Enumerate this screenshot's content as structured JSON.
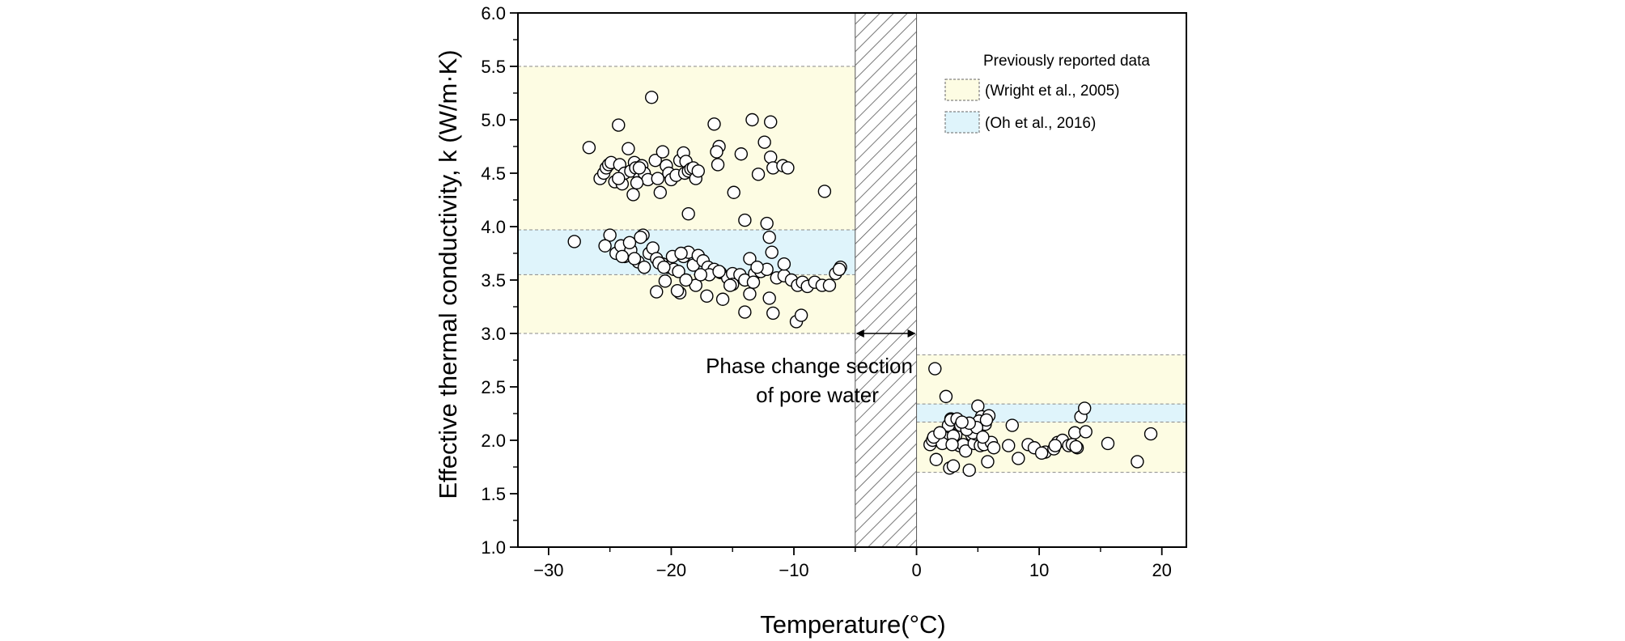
{
  "chart_data": {
    "type": "scatter",
    "title": "",
    "xlabel": "Temperature(°C)",
    "ylabel": "Effective thermal conductivity, k (W/m·K)",
    "xlim": [
      -32.5,
      22
    ],
    "ylim": [
      1.0,
      6.0
    ],
    "x_ticks": [
      -30,
      -20,
      -10,
      0,
      10,
      20
    ],
    "x_tick_labels": [
      "−30",
      "−20",
      "−10",
      "0",
      "10",
      "20"
    ],
    "y_ticks": [
      1.0,
      1.5,
      2.0,
      2.5,
      3.0,
      3.5,
      4.0,
      4.5,
      5.0,
      5.5,
      6.0
    ],
    "y_tick_labels": [
      "1.0",
      "1.5",
      "2.0",
      "2.5",
      "3.0",
      "3.5",
      "4.0",
      "4.5",
      "5.0",
      "5.5",
      "6.0"
    ],
    "grid": false,
    "legend": {
      "title": "Previously reported data",
      "placement": "top-right",
      "entries": [
        {
          "label": "(Wright et al., 2005)",
          "color": "#fdfce3"
        },
        {
          "label": "(Oh et al., 2016)",
          "color": "#dff4fb"
        }
      ]
    },
    "bands": [
      {
        "name": "wright-frozen",
        "x": [
          -32.5,
          -5
        ],
        "y": [
          3.0,
          5.5
        ],
        "color": "#fdfce3"
      },
      {
        "name": "oh-frozen",
        "x": [
          -32.5,
          -5
        ],
        "y": [
          3.55,
          3.97
        ],
        "color": "#dff4fb"
      },
      {
        "name": "wright-unfrozen",
        "x": [
          0,
          22
        ],
        "y": [
          1.7,
          2.8
        ],
        "color": "#fdfce3"
      },
      {
        "name": "oh-unfrozen",
        "x": [
          0,
          22
        ],
        "y": [
          2.17,
          2.34
        ],
        "color": "#dff4fb"
      }
    ],
    "phase_change_region": {
      "x": [
        -5,
        0
      ],
      "arrow_y": 3.0
    },
    "annotation": {
      "line1": "Phase change section",
      "line2": "of pore water"
    },
    "series": [
      {
        "x": [
          -27.9,
          -26.7,
          -25.8,
          -25.5,
          -25.3,
          -25.1,
          -24.9,
          -24.6,
          -24.3,
          -24.2,
          -24.0,
          -23.8,
          -23.5,
          -23.3,
          -23.1,
          -23.0,
          -22.9,
          -22.6,
          -22.4,
          -22.2,
          -21.9,
          -21.6,
          -21.3,
          -21.1,
          -20.9,
          -20.7,
          -20.4,
          -20.2,
          -20.0,
          -19.6,
          -19.3,
          -19.0,
          -18.9,
          -18.8,
          -18.6,
          -18.4,
          -18.2,
          -18.0,
          -17.8,
          -16.5,
          -16.2,
          -16.1,
          -16.3,
          -14.9,
          -14.3,
          -13.4,
          -12.9,
          -12.4,
          -11.9,
          -11.9,
          -11.7,
          -10.9,
          -10.5,
          -7.5,
          -25.0,
          -24.5,
          -24.1,
          -23.8,
          -23.3,
          -22.7,
          -22.3,
          -21.8,
          -21.5,
          -21.2,
          -20.7,
          -20.3,
          -19.8,
          -19.4,
          -19.0,
          -18.6,
          -18.2,
          -17.8,
          -17.4,
          -17.0,
          -16.5,
          -16.0,
          -15.4,
          -15.0,
          -14.4,
          -14.0,
          -13.6,
          -13.2,
          -12.7,
          -12.2,
          -11.8,
          -11.4,
          -10.8,
          -10.2,
          -9.7,
          -9.3,
          -8.9,
          -8.3,
          -7.7,
          -7.1,
          -6.6,
          -6.2,
          -21.2,
          -20.5,
          -19.3,
          -18.0,
          -17.1,
          -15.8,
          -15.0,
          -14.0,
          -13.6,
          -12.0,
          -11.7,
          -9.8,
          -9.4,
          -22.8,
          -24.3,
          -22.6,
          -18.6,
          -14.0,
          -12.2,
          -23.4,
          -22.2,
          -21.0,
          -19.9,
          -19.2,
          -16.9,
          -22.5,
          -25.4,
          -19.5,
          -17.6,
          -16.1,
          -13.3,
          -12.0,
          -10.8,
          -24.0,
          -23.0,
          -20.6,
          -18.8,
          -15.2,
          -13.0,
          -6.3
        ],
        "y": [
          3.86,
          4.74,
          4.45,
          4.5,
          4.55,
          4.58,
          4.6,
          4.42,
          4.95,
          4.58,
          4.4,
          4.5,
          4.73,
          4.52,
          4.3,
          4.6,
          4.55,
          4.45,
          4.57,
          4.5,
          4.44,
          5.21,
          4.62,
          4.45,
          4.32,
          4.7,
          4.57,
          4.5,
          4.44,
          4.48,
          4.62,
          4.69,
          4.5,
          4.61,
          4.52,
          4.54,
          4.55,
          4.45,
          4.52,
          4.96,
          4.58,
          4.75,
          4.7,
          4.32,
          4.68,
          5.0,
          4.49,
          4.79,
          4.98,
          4.65,
          4.55,
          4.57,
          4.55,
          4.33,
          3.92,
          3.75,
          3.82,
          3.72,
          3.78,
          3.67,
          3.92,
          3.75,
          3.8,
          3.7,
          3.65,
          3.62,
          3.6,
          3.58,
          3.72,
          3.76,
          3.64,
          3.73,
          3.68,
          3.62,
          3.6,
          3.57,
          3.52,
          3.56,
          3.55,
          3.5,
          3.7,
          3.56,
          3.58,
          3.6,
          3.76,
          3.52,
          3.54,
          3.5,
          3.45,
          3.48,
          3.44,
          3.48,
          3.45,
          3.45,
          3.56,
          3.62,
          3.39,
          3.49,
          3.38,
          3.45,
          3.35,
          3.32,
          3.46,
          3.2,
          3.37,
          3.33,
          3.19,
          3.11,
          3.17,
          4.41,
          4.45,
          4.55,
          4.12,
          4.06,
          4.03,
          3.85,
          3.62,
          3.66,
          3.72,
          3.75,
          3.55,
          3.9,
          3.82,
          3.4,
          3.55,
          3.58,
          3.48,
          3.9,
          3.65,
          3.72,
          3.7,
          3.62,
          3.5,
          3.45,
          3.62,
          3.6
        ]
      },
      {
        "x": [
          1.1,
          1.3,
          1.6,
          1.5,
          2.2,
          2.6,
          2.7,
          2.8,
          3.0,
          3.2,
          3.5,
          3.8,
          4.0,
          4.2,
          4.3,
          4.5,
          4.7,
          4.8,
          5.0,
          5.2,
          5.3,
          5.5,
          5.6,
          5.8,
          6.1,
          7.5,
          8.3,
          9.1,
          9.6,
          10.5,
          11.2,
          11.5,
          11.9,
          12.4,
          12.9,
          13.1,
          13.4,
          13.7,
          15.6,
          18.0,
          19.1,
          2.8,
          3.3,
          4.6,
          5.1,
          5.9,
          7.8,
          2.1,
          2.4,
          3.0,
          3.6,
          4.1,
          4.9,
          5.4,
          1.4,
          2.9,
          4.3,
          5.7,
          10.2,
          11.3,
          12.7,
          13.0,
          13.8,
          1.9,
          3.7,
          6.3
        ],
        "y": [
          1.96,
          2.0,
          1.82,
          2.67,
          2.03,
          2.14,
          1.74,
          2.2,
          1.76,
          2.05,
          1.95,
          1.96,
          1.9,
          2.12,
          1.72,
          2.05,
          1.97,
          2.06,
          2.32,
          1.95,
          2.22,
          1.96,
          2.15,
          1.8,
          1.98,
          1.95,
          1.83,
          1.96,
          1.93,
          1.89,
          1.92,
          1.98,
          2.0,
          1.95,
          2.07,
          1.93,
          2.22,
          2.3,
          1.97,
          1.8,
          2.06,
          2.19,
          2.2,
          2.07,
          2.18,
          2.23,
          2.14,
          1.97,
          2.41,
          2.04,
          2.14,
          2.1,
          2.12,
          2.03,
          2.03,
          1.96,
          2.16,
          2.19,
          1.88,
          1.95,
          1.96,
          1.94,
          2.08,
          2.07,
          2.17,
          1.93
        ]
      }
    ]
  }
}
